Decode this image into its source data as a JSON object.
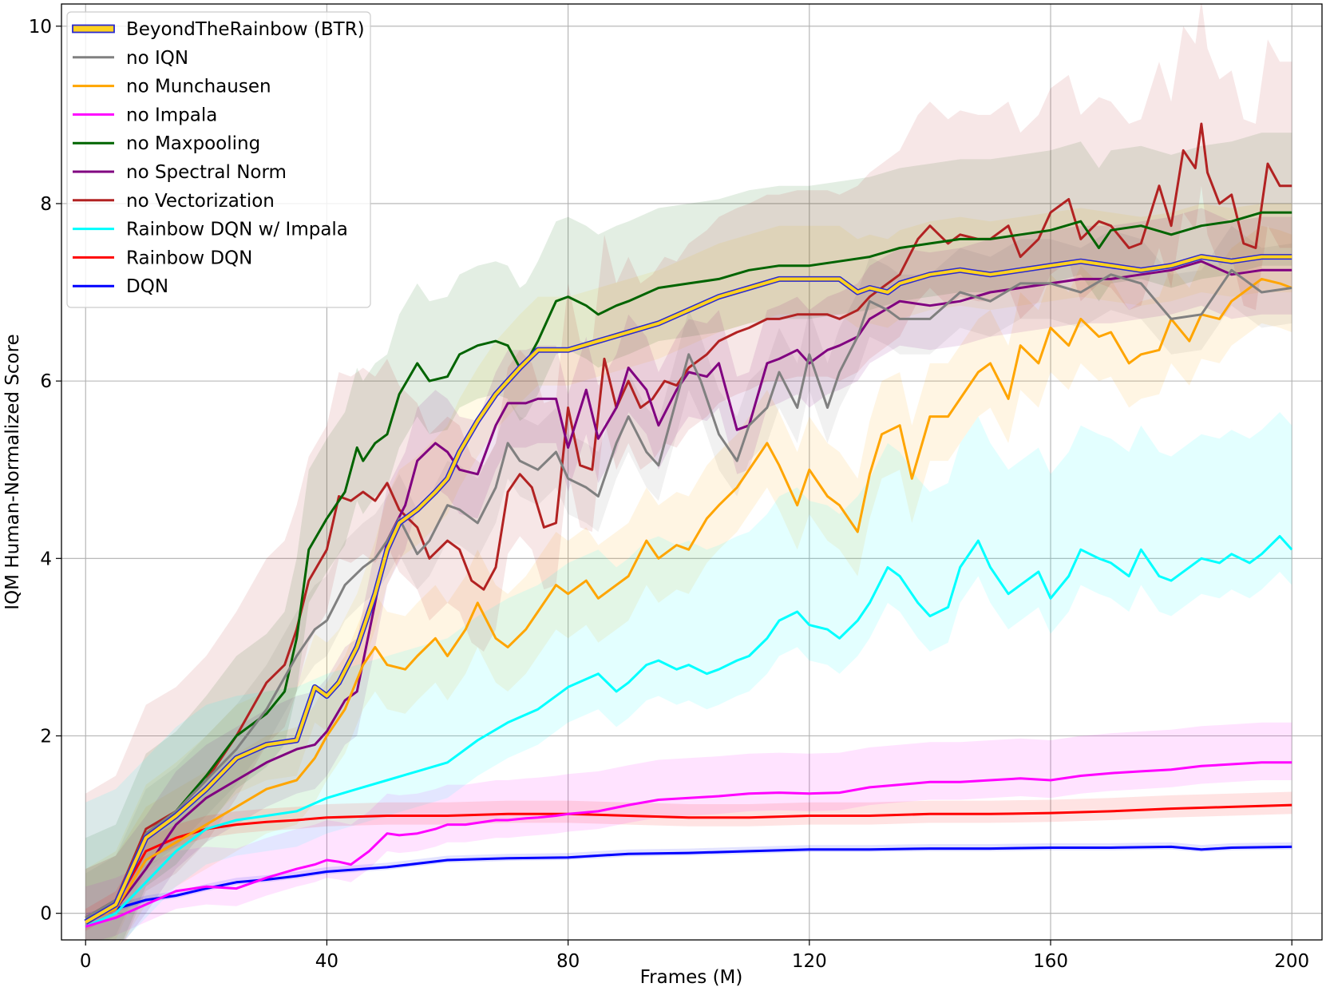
{
  "chart_data": {
    "type": "line",
    "title": "",
    "xlabel": "Frames (M)",
    "ylabel": "IQM Human-Normalized Score",
    "xlim": [
      -4,
      205
    ],
    "ylim": [
      -0.3,
      10.25
    ],
    "grid": true,
    "legend_position": "top-left",
    "x_ticks": [
      0,
      40,
      80,
      120,
      160,
      200
    ],
    "x_tick_labels": [
      "0",
      "40",
      "80",
      "120",
      "160",
      "200"
    ],
    "y_ticks": [
      0,
      2,
      4,
      6,
      8,
      10
    ],
    "y_tick_labels": [
      "0",
      "2",
      "4",
      "6",
      "8",
      "10"
    ],
    "series": [
      {
        "name": "BeyondTheRainbow (BTR)",
        "color": "#FFD21F",
        "outline": "#2A2AD0",
        "x": [
          0,
          5,
          10,
          15,
          20,
          25,
          30,
          35,
          38,
          40,
          42,
          45,
          48,
          50,
          52,
          55,
          58,
          60,
          62,
          65,
          68,
          70,
          72,
          75,
          80,
          85,
          90,
          95,
          100,
          105,
          110,
          115,
          120,
          125,
          128,
          130,
          133,
          135,
          140,
          145,
          150,
          155,
          160,
          165,
          170,
          175,
          180,
          185,
          190,
          195,
          200
        ],
        "y": [
          -0.1,
          0.1,
          0.85,
          1.1,
          1.4,
          1.75,
          1.9,
          1.95,
          2.55,
          2.45,
          2.6,
          3.0,
          3.6,
          4.1,
          4.4,
          4.55,
          4.75,
          4.9,
          5.2,
          5.55,
          5.85,
          6.0,
          6.15,
          6.35,
          6.35,
          6.45,
          6.55,
          6.65,
          6.8,
          6.95,
          7.05,
          7.15,
          7.15,
          7.15,
          7.0,
          7.05,
          7.0,
          7.1,
          7.2,
          7.25,
          7.2,
          7.25,
          7.3,
          7.35,
          7.3,
          7.25,
          7.3,
          7.4,
          7.35,
          7.4,
          7.4
        ],
        "band": [
          0.4,
          0.6
        ]
      },
      {
        "name": "no IQN",
        "color": "#808080",
        "x": [
          0,
          5,
          10,
          15,
          20,
          25,
          30,
          35,
          38,
          40,
          43,
          46,
          48,
          50,
          52,
          55,
          57,
          60,
          62,
          65,
          68,
          70,
          72,
          75,
          78,
          80,
          83,
          85,
          88,
          90,
          93,
          95,
          98,
          100,
          102,
          105,
          108,
          110,
          113,
          115,
          118,
          120,
          123,
          125,
          128,
          130,
          133,
          135,
          140,
          145,
          150,
          155,
          160,
          165,
          170,
          175,
          180,
          185,
          190,
          195,
          200
        ],
        "y": [
          -0.05,
          0.15,
          0.9,
          1.15,
          1.5,
          1.85,
          2.3,
          2.9,
          3.2,
          3.3,
          3.7,
          3.9,
          4.0,
          4.2,
          4.45,
          4.05,
          4.2,
          4.6,
          4.55,
          4.4,
          4.8,
          5.3,
          5.1,
          5.0,
          5.2,
          4.9,
          4.8,
          4.7,
          5.3,
          5.6,
          5.2,
          5.05,
          5.8,
          6.3,
          6.0,
          5.4,
          5.1,
          5.5,
          5.7,
          6.1,
          5.7,
          6.3,
          5.7,
          6.1,
          6.5,
          6.9,
          6.8,
          6.7,
          6.7,
          7.0,
          6.9,
          7.1,
          7.1,
          7.0,
          7.2,
          7.1,
          6.7,
          6.75,
          7.25,
          7.0,
          7.05
        ],
        "band": [
          0.4,
          0.5
        ]
      },
      {
        "name": "no Munchausen",
        "color": "#FFA500",
        "x": [
          0,
          5,
          10,
          15,
          20,
          25,
          30,
          35,
          38,
          40,
          43,
          46,
          48,
          50,
          53,
          55,
          58,
          60,
          63,
          65,
          68,
          70,
          73,
          75,
          78,
          80,
          83,
          85,
          88,
          90,
          93,
          95,
          98,
          100,
          103,
          105,
          108,
          110,
          113,
          115,
          118,
          120,
          123,
          125,
          128,
          130,
          132,
          135,
          137,
          140,
          143,
          145,
          148,
          150,
          153,
          155,
          158,
          160,
          163,
          165,
          168,
          170,
          173,
          175,
          178,
          180,
          183,
          185,
          188,
          190,
          193,
          195,
          198,
          200
        ],
        "y": [
          -0.1,
          0.05,
          0.6,
          0.8,
          1.0,
          1.2,
          1.4,
          1.5,
          1.75,
          2.0,
          2.3,
          2.8,
          3.0,
          2.8,
          2.75,
          2.9,
          3.1,
          2.9,
          3.2,
          3.5,
          3.1,
          3.0,
          3.2,
          3.4,
          3.7,
          3.6,
          3.75,
          3.55,
          3.7,
          3.8,
          4.2,
          4.0,
          4.15,
          4.1,
          4.45,
          4.6,
          4.8,
          5.0,
          5.3,
          5.05,
          4.6,
          5.0,
          4.7,
          4.6,
          4.3,
          4.95,
          5.4,
          5.5,
          4.9,
          5.6,
          5.6,
          5.8,
          6.1,
          6.2,
          5.8,
          6.4,
          6.2,
          6.6,
          6.4,
          6.7,
          6.5,
          6.55,
          6.2,
          6.3,
          6.35,
          6.7,
          6.45,
          6.75,
          6.7,
          6.9,
          7.05,
          7.15,
          7.1,
          7.05
        ],
        "band": [
          0.5,
          0.6
        ]
      },
      {
        "name": "no Impala",
        "color": "#FF00FF",
        "x": [
          0,
          5,
          10,
          15,
          20,
          25,
          30,
          35,
          38,
          40,
          42,
          44,
          47,
          50,
          52,
          55,
          58,
          60,
          63,
          65,
          68,
          70,
          73,
          75,
          78,
          80,
          85,
          90,
          95,
          100,
          105,
          110,
          115,
          120,
          125,
          130,
          135,
          140,
          145,
          150,
          155,
          160,
          165,
          170,
          175,
          180,
          185,
          190,
          195,
          200
        ],
        "y": [
          -0.15,
          -0.05,
          0.1,
          0.25,
          0.3,
          0.28,
          0.4,
          0.5,
          0.55,
          0.6,
          0.58,
          0.55,
          0.7,
          0.9,
          0.88,
          0.9,
          0.95,
          1.0,
          1.0,
          1.02,
          1.05,
          1.05,
          1.07,
          1.08,
          1.1,
          1.12,
          1.15,
          1.22,
          1.28,
          1.3,
          1.32,
          1.35,
          1.36,
          1.35,
          1.36,
          1.42,
          1.45,
          1.48,
          1.48,
          1.5,
          1.52,
          1.5,
          1.55,
          1.58,
          1.6,
          1.62,
          1.66,
          1.68,
          1.7,
          1.7
        ],
        "band": [
          0.2,
          0.45
        ]
      },
      {
        "name": "no Maxpooling",
        "color": "#006400",
        "x": [
          0,
          5,
          10,
          15,
          20,
          25,
          30,
          33,
          35,
          37,
          40,
          43,
          45,
          46,
          48,
          50,
          52,
          55,
          57,
          60,
          62,
          65,
          68,
          70,
          72,
          73,
          75,
          78,
          80,
          83,
          85,
          88,
          90,
          95,
          100,
          105,
          110,
          115,
          120,
          125,
          130,
          135,
          140,
          145,
          150,
          155,
          160,
          165,
          168,
          170,
          175,
          180,
          185,
          190,
          195,
          200
        ],
        "y": [
          -0.05,
          0.1,
          0.9,
          1.15,
          1.55,
          2.0,
          2.25,
          2.5,
          3.1,
          4.1,
          4.45,
          4.75,
          5.25,
          5.1,
          5.3,
          5.4,
          5.85,
          6.2,
          6.0,
          6.05,
          6.3,
          6.4,
          6.45,
          6.4,
          6.15,
          6.2,
          6.45,
          6.9,
          6.95,
          6.85,
          6.75,
          6.85,
          6.9,
          7.05,
          7.1,
          7.15,
          7.25,
          7.3,
          7.3,
          7.35,
          7.4,
          7.5,
          7.55,
          7.6,
          7.6,
          7.65,
          7.7,
          7.8,
          7.5,
          7.7,
          7.75,
          7.65,
          7.75,
          7.8,
          7.9,
          7.9
        ],
        "band": [
          0.6,
          0.9
        ]
      },
      {
        "name": "no Spectral Norm",
        "color": "#800080",
        "x": [
          0,
          5,
          10,
          15,
          20,
          25,
          30,
          35,
          38,
          40,
          43,
          45,
          48,
          50,
          53,
          55,
          58,
          60,
          62,
          65,
          68,
          70,
          73,
          75,
          78,
          80,
          83,
          85,
          88,
          90,
          93,
          95,
          98,
          100,
          103,
          105,
          108,
          110,
          113,
          115,
          118,
          120,
          123,
          125,
          128,
          130,
          135,
          140,
          145,
          150,
          155,
          160,
          165,
          170,
          175,
          180,
          185,
          190,
          195,
          200
        ],
        "y": [
          -0.1,
          0.05,
          0.5,
          1.0,
          1.3,
          1.5,
          1.7,
          1.85,
          1.9,
          2.05,
          2.4,
          2.5,
          3.5,
          4.2,
          4.6,
          5.1,
          5.3,
          5.2,
          5.0,
          4.95,
          5.5,
          5.75,
          5.75,
          5.8,
          5.8,
          5.25,
          5.9,
          5.35,
          5.7,
          6.15,
          5.9,
          5.5,
          5.9,
          6.1,
          6.05,
          6.2,
          5.45,
          5.5,
          6.2,
          6.25,
          6.35,
          6.2,
          6.35,
          6.4,
          6.5,
          6.7,
          6.9,
          6.85,
          6.9,
          7.0,
          7.05,
          7.1,
          7.15,
          7.15,
          7.2,
          7.25,
          7.35,
          7.2,
          7.25,
          7.25
        ],
        "band": [
          0.5,
          0.6
        ]
      },
      {
        "name": "no Vectorization",
        "color": "#B22222",
        "x": [
          0,
          5,
          10,
          15,
          20,
          25,
          30,
          33,
          35,
          37,
          40,
          42,
          44,
          46,
          48,
          50,
          52,
          55,
          57,
          60,
          62,
          64,
          66,
          68,
          70,
          72,
          74,
          76,
          78,
          80,
          82,
          84,
          86,
          88,
          90,
          92,
          94,
          96,
          98,
          100,
          103,
          105,
          108,
          110,
          113,
          115,
          118,
          120,
          123,
          125,
          128,
          130,
          133,
          135,
          138,
          140,
          143,
          145,
          148,
          150,
          153,
          155,
          158,
          160,
          163,
          165,
          168,
          170,
          173,
          175,
          178,
          180,
          182,
          184,
          185,
          186,
          188,
          190,
          192,
          194,
          196,
          198,
          200
        ],
        "y": [
          -0.05,
          0.15,
          0.95,
          1.15,
          1.5,
          2.0,
          2.6,
          2.8,
          3.2,
          3.75,
          4.1,
          4.7,
          4.65,
          4.75,
          4.65,
          4.85,
          4.55,
          4.35,
          4.0,
          4.2,
          4.1,
          3.75,
          3.65,
          3.9,
          4.75,
          4.95,
          4.8,
          4.35,
          4.4,
          5.7,
          5.05,
          5.0,
          6.25,
          5.7,
          6.0,
          5.7,
          5.8,
          6.0,
          5.95,
          6.15,
          6.3,
          6.45,
          6.55,
          6.6,
          6.7,
          6.7,
          6.75,
          6.75,
          6.75,
          6.7,
          6.8,
          6.95,
          7.1,
          7.2,
          7.6,
          7.75,
          7.55,
          7.65,
          7.6,
          7.6,
          7.75,
          7.4,
          7.6,
          7.9,
          8.05,
          7.6,
          7.8,
          7.75,
          7.5,
          7.55,
          8.2,
          7.75,
          8.6,
          8.4,
          8.9,
          8.35,
          8.0,
          8.1,
          7.55,
          7.5,
          8.45,
          8.2,
          8.2
        ],
        "band": [
          0.7,
          1.4
        ]
      },
      {
        "name": "Rainbow DQN w/ Impala",
        "color": "#00FFFF",
        "x": [
          0,
          5,
          10,
          15,
          20,
          25,
          30,
          35,
          40,
          45,
          50,
          55,
          60,
          65,
          70,
          75,
          80,
          85,
          88,
          90,
          93,
          95,
          98,
          100,
          103,
          105,
          108,
          110,
          113,
          115,
          118,
          120,
          123,
          125,
          128,
          130,
          133,
          135,
          138,
          140,
          143,
          145,
          148,
          150,
          153,
          155,
          158,
          160,
          163,
          165,
          168,
          170,
          173,
          175,
          178,
          180,
          183,
          185,
          188,
          190,
          193,
          195,
          198,
          200
        ],
        "y": [
          -0.15,
          0.0,
          0.35,
          0.7,
          0.95,
          1.05,
          1.1,
          1.15,
          1.3,
          1.4,
          1.5,
          1.6,
          1.7,
          1.95,
          2.15,
          2.3,
          2.55,
          2.7,
          2.5,
          2.6,
          2.8,
          2.85,
          2.75,
          2.8,
          2.7,
          2.75,
          2.85,
          2.9,
          3.1,
          3.3,
          3.4,
          3.25,
          3.2,
          3.1,
          3.3,
          3.5,
          3.9,
          3.8,
          3.5,
          3.35,
          3.45,
          3.9,
          4.2,
          3.9,
          3.6,
          3.7,
          3.85,
          3.55,
          3.8,
          4.1,
          4.0,
          3.95,
          3.8,
          4.1,
          3.8,
          3.75,
          3.9,
          4.0,
          3.95,
          4.05,
          3.95,
          4.05,
          4.25,
          4.1
        ],
        "band": [
          0.4,
          1.4
        ]
      },
      {
        "name": "Rainbow DQN",
        "color": "#FF0000",
        "x": [
          0,
          5,
          10,
          15,
          20,
          25,
          30,
          35,
          40,
          50,
          60,
          70,
          80,
          90,
          100,
          110,
          120,
          130,
          140,
          150,
          160,
          170,
          180,
          190,
          200
        ],
        "y": [
          -0.1,
          0.1,
          0.7,
          0.85,
          0.95,
          1.0,
          1.03,
          1.05,
          1.08,
          1.1,
          1.1,
          1.12,
          1.12,
          1.1,
          1.08,
          1.08,
          1.1,
          1.1,
          1.12,
          1.12,
          1.13,
          1.15,
          1.18,
          1.2,
          1.22
        ],
        "band": [
          0.1,
          0.15
        ]
      },
      {
        "name": "DQN",
        "color": "#0000FF",
        "x": [
          0,
          5,
          10,
          15,
          20,
          25,
          30,
          35,
          40,
          50,
          60,
          70,
          80,
          90,
          100,
          110,
          120,
          130,
          140,
          150,
          160,
          170,
          180,
          185,
          190,
          200
        ],
        "y": [
          -0.05,
          0.05,
          0.15,
          0.2,
          0.28,
          0.35,
          0.38,
          0.42,
          0.47,
          0.52,
          0.6,
          0.62,
          0.63,
          0.67,
          0.68,
          0.7,
          0.72,
          0.72,
          0.73,
          0.73,
          0.74,
          0.74,
          0.75,
          0.72,
          0.74,
          0.75
        ],
        "band": [
          0.03,
          0.05
        ]
      }
    ]
  }
}
